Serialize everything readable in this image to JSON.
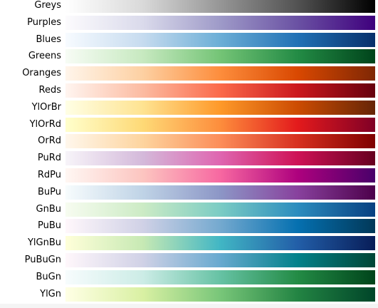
{
  "chart_data": {
    "type": "heatmap",
    "title": "",
    "colormaps": [
      {
        "name": "Greys",
        "stops": [
          "#ffffff",
          "#d9d9d9",
          "#969696",
          "#525252",
          "#000000"
        ]
      },
      {
        "name": "Purples",
        "stops": [
          "#fcfbfd",
          "#dadaeb",
          "#9e9ac8",
          "#6a51a3",
          "#3f007d"
        ]
      },
      {
        "name": "Blues",
        "stops": [
          "#f7fbff",
          "#c6dbef",
          "#6baed6",
          "#2171b5",
          "#08306b"
        ]
      },
      {
        "name": "Greens",
        "stops": [
          "#f7fcf5",
          "#c7e9c0",
          "#74c476",
          "#238b45",
          "#00441b"
        ]
      },
      {
        "name": "Oranges",
        "stops": [
          "#fff5eb",
          "#fdd0a2",
          "#fd8d3c",
          "#d94801",
          "#7f2704"
        ]
      },
      {
        "name": "Reds",
        "stops": [
          "#fff5f0",
          "#fcbba1",
          "#fb6a4a",
          "#cb181d",
          "#67000d"
        ]
      },
      {
        "name": "YlOrBr",
        "stops": [
          "#ffffe5",
          "#fee391",
          "#fe9929",
          "#cc4c02",
          "#662506"
        ]
      },
      {
        "name": "YlOrRd",
        "stops": [
          "#ffffcc",
          "#fed976",
          "#fd8d3c",
          "#e31a1c",
          "#800026"
        ]
      },
      {
        "name": "OrRd",
        "stops": [
          "#fff7ec",
          "#fdd49e",
          "#fc8d59",
          "#d7301f",
          "#7f0000"
        ]
      },
      {
        "name": "PuRd",
        "stops": [
          "#f7f4f9",
          "#d4b9da",
          "#df65b0",
          "#ce1256",
          "#67001f"
        ]
      },
      {
        "name": "RdPu",
        "stops": [
          "#fff7f3",
          "#fcc5c0",
          "#f768a1",
          "#ae017e",
          "#49006a"
        ]
      },
      {
        "name": "BuPu",
        "stops": [
          "#f7fcfd",
          "#bfd3e6",
          "#8c96c6",
          "#88419d",
          "#4d004b"
        ]
      },
      {
        "name": "GnBu",
        "stops": [
          "#f7fcf0",
          "#ccebc5",
          "#7bccc4",
          "#2b8cbe",
          "#084081"
        ]
      },
      {
        "name": "PuBu",
        "stops": [
          "#fff7fb",
          "#d0d1e6",
          "#74a9cf",
          "#0570b0",
          "#023858"
        ]
      },
      {
        "name": "YlGnBu",
        "stops": [
          "#ffffd9",
          "#c7e9b4",
          "#41b6c4",
          "#225ea8",
          "#081d58"
        ]
      },
      {
        "name": "PuBuGn",
        "stops": [
          "#fff7fb",
          "#d0d1e6",
          "#67a9cf",
          "#02818a",
          "#014636"
        ]
      },
      {
        "name": "BuGn",
        "stops": [
          "#f7fcfd",
          "#ccece6",
          "#66c2a4",
          "#238b45",
          "#00441b"
        ]
      },
      {
        "name": "YlGn",
        "stops": [
          "#ffffe5",
          "#d9f0a3",
          "#78c679",
          "#238443",
          "#004529"
        ]
      }
    ]
  }
}
